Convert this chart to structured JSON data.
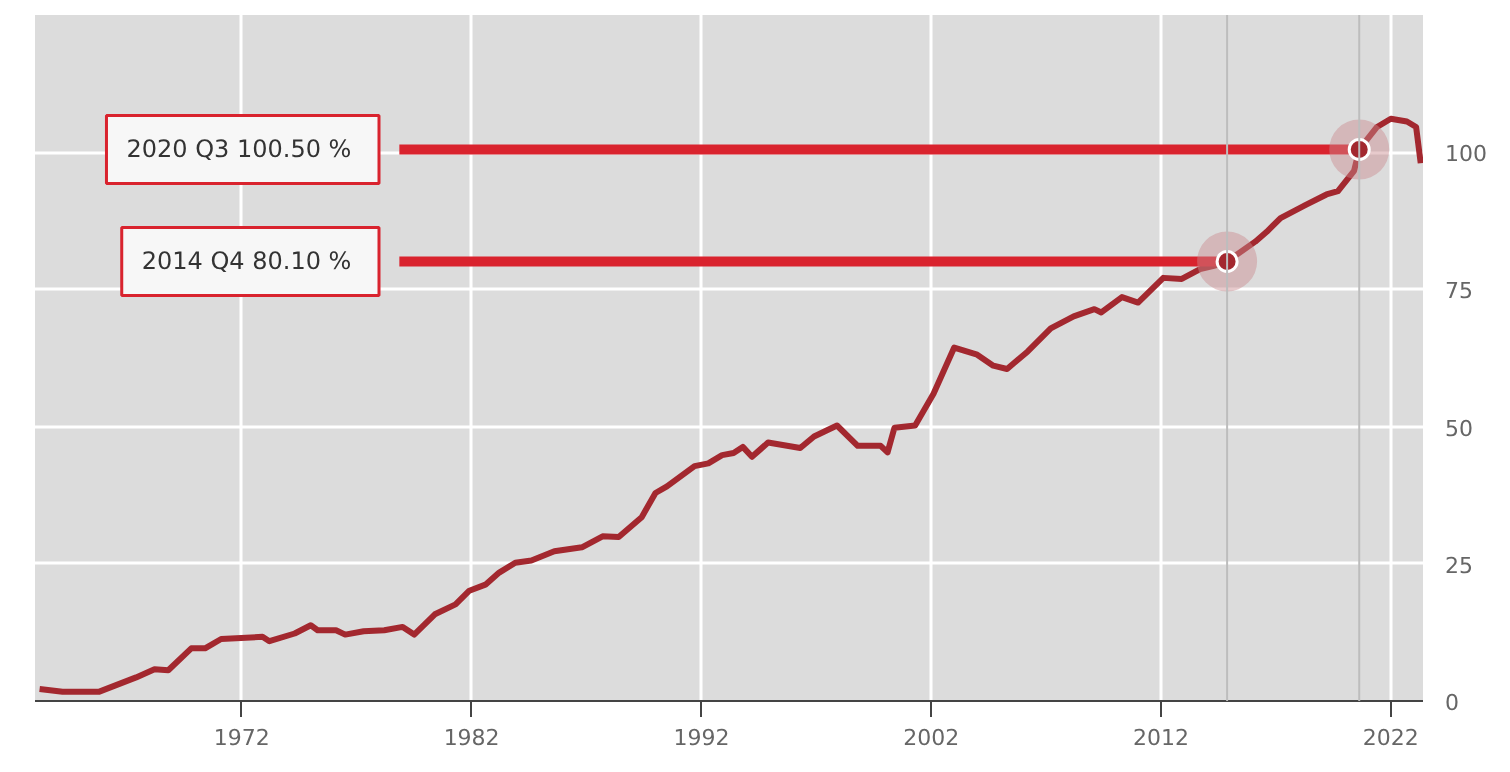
{
  "chart_data": {
    "type": "line",
    "xlim": [
      1963,
      2023.4
    ],
    "xticks": [
      1972,
      1982,
      1992,
      2002,
      2012,
      2022
    ],
    "ylim": [
      0,
      125
    ],
    "yticks": [
      0,
      25,
      50,
      75,
      100
    ],
    "grid": true,
    "marker": "none",
    "line_style": "solid",
    "series": [
      {
        "color": "#a3282f",
        "x": [
          1963.2,
          1964.2,
          1965.8,
          1967.4,
          1968.2,
          1968.8,
          1969.8,
          1970.4,
          1971.1,
          1972.9,
          1973.2,
          1974.3,
          1975.0,
          1975.3,
          1976.1,
          1976.5,
          1977.3,
          1978.2,
          1979.0,
          1979.5,
          1980.4,
          1981.3,
          1981.9,
          1982.6,
          1983.2,
          1983.9,
          1984.6,
          1985.6,
          1986.8,
          1987.7,
          1988.4,
          1989.4,
          1990.0,
          1990.5,
          1991.7,
          1992.3,
          1992.9,
          1993.4,
          1993.8,
          1994.2,
          1994.9,
          1996.3,
          1996.9,
          1997.9,
          1998.8,
          1999.8,
          2000.1,
          2000.4,
          2001.3,
          2002.1,
          2003.0,
          2004.0,
          2004.7,
          2005.3,
          2006.2,
          2007.2,
          2008.2,
          2009.1,
          2009.4,
          2010.3,
          2011.0,
          2012.1,
          2012.9,
          2013.7,
          2014.3,
          2014.875,
          2016.1,
          2016.6,
          2017.2,
          2018.3,
          2019.2,
          2019.7,
          2020.4,
          2020.625,
          2021.4,
          2022.0,
          2022.7,
          2023.1,
          2023.3
        ],
        "values": [
          2.2,
          1.7,
          1.7,
          4.3,
          5.8,
          5.6,
          9.6,
          9.6,
          11.3,
          11.7,
          10.9,
          12.3,
          13.8,
          12.9,
          12.9,
          12.1,
          12.7,
          12.9,
          13.5,
          12.1,
          15.8,
          17.6,
          20.1,
          21.2,
          23.4,
          25.2,
          25.6,
          27.3,
          28.0,
          30.0,
          29.9,
          33.5,
          37.9,
          39.1,
          42.8,
          43.3,
          44.8,
          45.2,
          46.3,
          44.5,
          47.1,
          46.1,
          48.2,
          50.2,
          46.5,
          46.5,
          45.3,
          49.8,
          50.2,
          56.0,
          64.4,
          63.1,
          61.1,
          60.5,
          63.7,
          67.9,
          70.1,
          71.4,
          70.8,
          73.6,
          72.6,
          77.1,
          76.9,
          78.7,
          79.3,
          80.1,
          83.7,
          85.5,
          88.0,
          90.4,
          92.3,
          92.9,
          96.6,
          100.5,
          104.6,
          106.1,
          105.6,
          104.6,
          98.0
        ]
      }
    ],
    "ref_lines": [
      {
        "axis": "y",
        "value": 100.5,
        "label": "2020 Q3  100.50 %",
        "color": "#d9232e"
      },
      {
        "axis": "x",
        "value": 2020.625,
        "color": "#bdbdbd"
      },
      {
        "axis": "y",
        "value": 80.1,
        "label": "2014 Q4  80.10 %",
        "color": "#d9232e"
      },
      {
        "axis": "x",
        "value": 2014.875,
        "color": "#bdbdbd"
      }
    ]
  }
}
